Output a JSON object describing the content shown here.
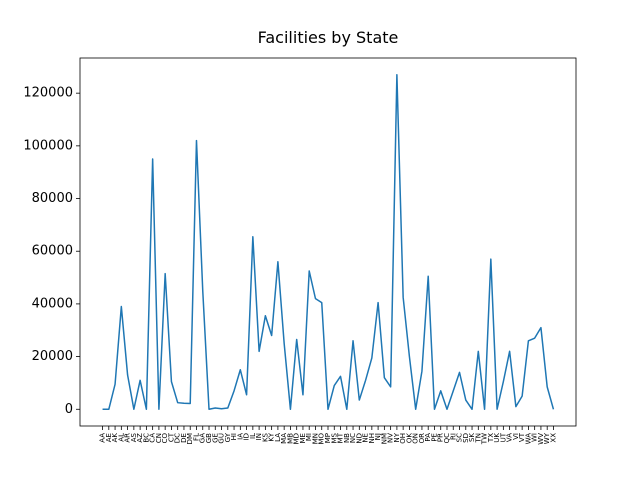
{
  "chart_data": {
    "type": "line",
    "title": "Facilities by State",
    "color": "#1f77b4",
    "categories": [
      "AA",
      "AE",
      "AK",
      "AL",
      "AR",
      "AS",
      "AZ",
      "BC",
      "CA",
      "CN",
      "CO",
      "CT",
      "DC",
      "DE",
      "DM",
      "FL",
      "GA",
      "GB",
      "GE",
      "GU",
      "GY",
      "HI",
      "IA",
      "ID",
      "IL",
      "IN",
      "KS",
      "KY",
      "LA",
      "MA",
      "MB",
      "MD",
      "ME",
      "MI",
      "MN",
      "MO",
      "MP",
      "MS",
      "MT",
      "NB",
      "NC",
      "ND",
      "NE",
      "NH",
      "NJ",
      "NM",
      "NV",
      "NY",
      "OH",
      "OK",
      "ON",
      "OR",
      "PA",
      "PE",
      "PR",
      "QC",
      "RI",
      "SC",
      "SD",
      "SK",
      "TN",
      "TW",
      "TX",
      "UK",
      "UT",
      "VA",
      "VI",
      "VT",
      "WA",
      "WI",
      "WV",
      "WY",
      "XX"
    ],
    "values": [
      0,
      0,
      9500,
      39000,
      13000,
      0,
      11000,
      0,
      95000,
      0,
      51500,
      10500,
      2500,
      2300,
      2200,
      102000,
      45000,
      0,
      500,
      200,
      500,
      7000,
      15000,
      5500,
      65500,
      22000,
      35500,
      28000,
      56000,
      25000,
      0,
      26500,
      5500,
      52500,
      42000,
      40500,
      0,
      9000,
      12500,
      0,
      26000,
      3500,
      11000,
      19500,
      40500,
      12000,
      8500,
      127000,
      42500,
      20000,
      0,
      14500,
      50500,
      0,
      7000,
      0,
      7000,
      14000,
      3500,
      0,
      22000,
      0,
      57000,
      0,
      10500,
      22000,
      1000,
      5000,
      26000,
      27000,
      31000,
      8500,
      0
    ],
    "ylim": [
      -6350,
      133350
    ],
    "yticks": [
      0,
      20000,
      40000,
      60000,
      80000,
      100000,
      120000
    ]
  }
}
